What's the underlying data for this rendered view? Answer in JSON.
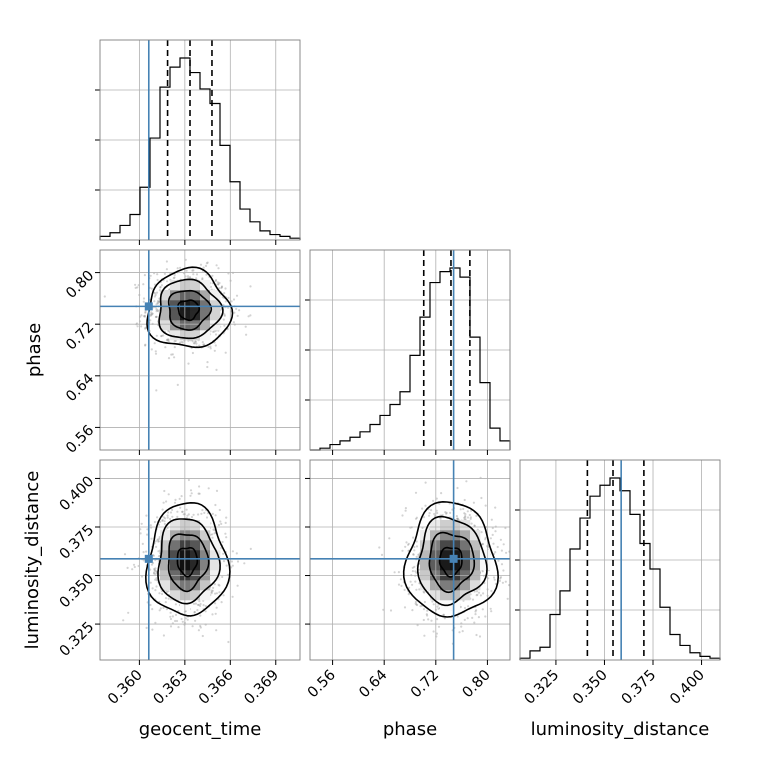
{
  "chart_data": {
    "type": "corner",
    "parameters": [
      "geocent_time",
      "phase",
      "luminosity_distance"
    ],
    "axis_labels": [
      "geocent_time",
      "phase",
      "luminosity_distance"
    ],
    "ranges": [
      [
        0.3574,
        0.3706
      ],
      [
        0.525,
        0.835
      ],
      [
        0.3065,
        0.4095
      ]
    ],
    "ticks": [
      {
        "values": [
          0.36,
          0.363,
          0.366,
          0.369
        ],
        "labels": [
          "0.360",
          "0.363",
          "0.366",
          "0.369"
        ]
      },
      {
        "values": [
          0.56,
          0.64,
          0.72,
          0.8
        ],
        "labels": [
          "0.56",
          "0.64",
          "0.72",
          "0.80"
        ]
      },
      {
        "values": [
          0.325,
          0.35,
          0.375,
          0.4
        ],
        "labels": [
          "0.325",
          "0.350",
          "0.375",
          "0.400"
        ]
      }
    ],
    "truths": [
      0.36062,
      0.7476,
      0.3586
    ],
    "truth_color": "#4682b4",
    "quantiles": [
      [
        0.36186,
        0.36334,
        0.36479
      ],
      [
        0.7013,
        0.7435,
        0.7728
      ],
      [
        0.3412,
        0.3544,
        0.3703
      ]
    ],
    "histograms": [
      {
        "param": "geocent_time",
        "bin_edges_range": [
          0.3574,
          0.3706
        ],
        "counts": [
          0.02,
          0.04,
          0.08,
          0.14,
          0.29,
          0.56,
          0.84,
          0.95,
          1.0,
          0.92,
          0.83,
          0.75,
          0.52,
          0.32,
          0.17,
          0.1,
          0.05,
          0.03,
          0.02,
          0.01
        ]
      },
      {
        "param": "phase",
        "bin_edges_range": [
          0.525,
          0.835
        ],
        "counts": [
          0.0,
          0.01,
          0.03,
          0.05,
          0.07,
          0.1,
          0.14,
          0.19,
          0.25,
          0.32,
          0.52,
          0.73,
          0.92,
          0.98,
          1.0,
          0.95,
          0.62,
          0.37,
          0.12,
          0.05
        ]
      },
      {
        "param": "luminosity_distance",
        "bin_edges_range": [
          0.3065,
          0.4095
        ],
        "counts": [
          0.01,
          0.05,
          0.07,
          0.25,
          0.38,
          0.61,
          0.78,
          0.9,
          0.96,
          1.0,
          0.93,
          0.8,
          0.64,
          0.5,
          0.29,
          0.14,
          0.08,
          0.04,
          0.02,
          0.01
        ]
      }
    ],
    "joint_distributions": [
      {
        "x": "geocent_time",
        "y": "phase",
        "center": [
          0.36323,
          0.7425
        ],
        "sd": [
          0.0013,
          0.029
        ],
        "corr": -0.05
      },
      {
        "x": "geocent_time",
        "y": "luminosity_distance",
        "center": [
          0.36315,
          0.3575
        ],
        "sd": [
          0.00125,
          0.0138
        ],
        "corr": 0.0
      },
      {
        "x": "phase",
        "y": "luminosity_distance",
        "center": [
          0.7435,
          0.3575
        ],
        "sd": [
          0.033,
          0.014
        ],
        "corr": 0.0
      }
    ],
    "grid": true
  }
}
